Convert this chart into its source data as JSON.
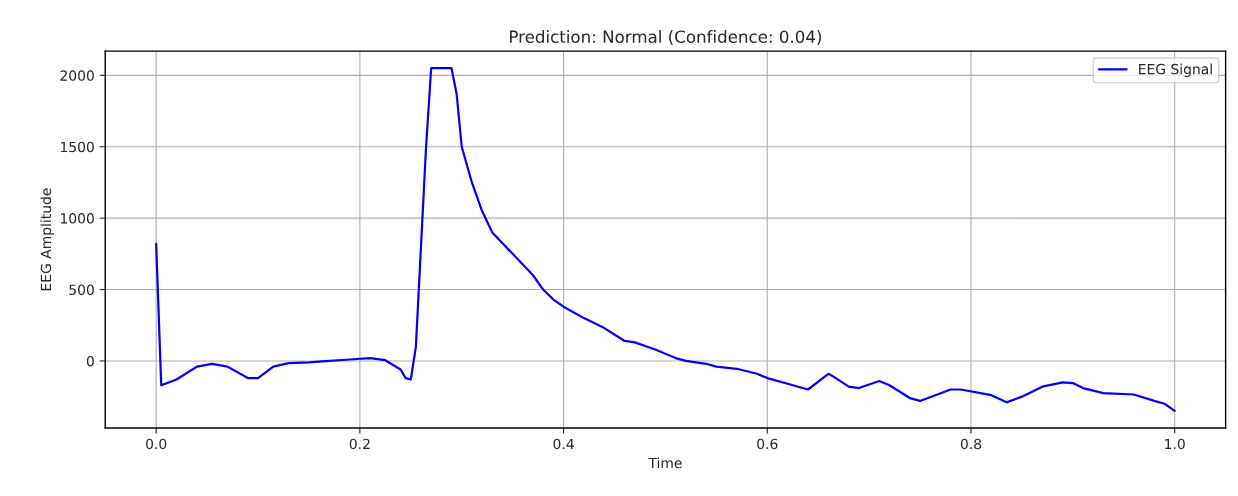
{
  "chart_data": {
    "type": "line",
    "title": "Prediction: Normal (Confidence: 0.04)",
    "xlabel": "Time",
    "ylabel": "EEG Amplitude",
    "xlim": [
      -0.05,
      1.05
    ],
    "xticks": [
      {
        "value": 0,
        "label": "0.0"
      },
      0.2,
      0.4,
      0.6,
      0.8,
      {
        "value": 1,
        "label": "1.0"
      }
    ],
    "ylim": [
      -470,
      2170
    ],
    "yticks": [
      0,
      500,
      1000,
      1500,
      2000
    ],
    "grid": true,
    "legend": "top right",
    "series": [
      {
        "name": "EEG Signal",
        "color": "#0000ff",
        "x": [
          0,
          0.005,
          0.02,
          0.04,
          0.055,
          0.07,
          0.09,
          0.1,
          0.115,
          0.13,
          0.15,
          0.17,
          0.19,
          0.21,
          0.225,
          0.24,
          0.245,
          0.25,
          0.255,
          0.265,
          0.27,
          0.29,
          0.295,
          0.3,
          0.31,
          0.32,
          0.33,
          0.35,
          0.37,
          0.38,
          0.39,
          0.4,
          0.42,
          0.44,
          0.46,
          0.47,
          0.49,
          0.51,
          0.52,
          0.54,
          0.55,
          0.57,
          0.59,
          0.6,
          0.62,
          0.64,
          0.66,
          0.665,
          0.68,
          0.69,
          0.71,
          0.72,
          0.74,
          0.75,
          0.78,
          0.79,
          0.82,
          0.835,
          0.85,
          0.87,
          0.89,
          0.9,
          0.91,
          0.93,
          0.96,
          0.98,
          0.99,
          1.0
        ],
        "values": [
          820,
          -170,
          -130,
          -40,
          -20,
          -40,
          -120,
          -120,
          -40,
          -15,
          -10,
          0,
          10,
          20,
          5,
          -60,
          -120,
          -130,
          100,
          1500,
          2050,
          2050,
          1870,
          1500,
          1250,
          1050,
          900,
          750,
          600,
          500,
          430,
          380,
          300,
          230,
          140,
          130,
          80,
          20,
          0,
          -20,
          -40,
          -55,
          -90,
          -120,
          -160,
          -200,
          -90,
          -110,
          -180,
          -190,
          -140,
          -170,
          -260,
          -280,
          -200,
          -200,
          -240,
          -290,
          -250,
          -180,
          -150,
          -155,
          -190,
          -225,
          -235,
          -280,
          -300,
          -350
        ]
      }
    ]
  }
}
